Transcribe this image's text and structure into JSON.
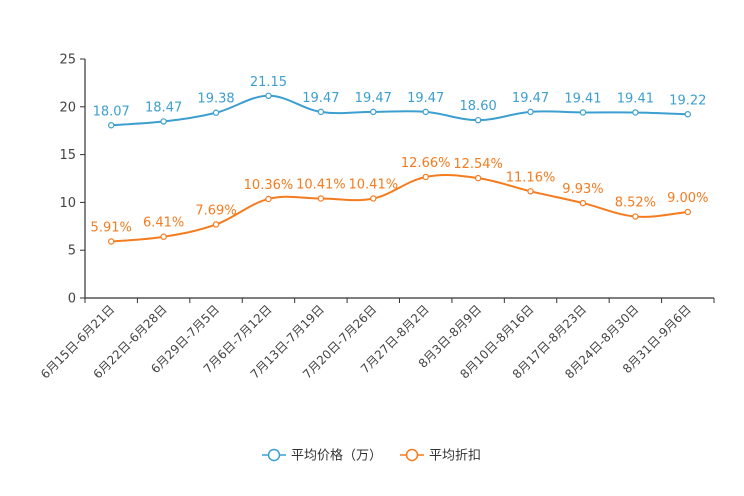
{
  "chart_data": {
    "type": "line",
    "title": "",
    "xlabel": "",
    "ylabel": "",
    "ylim": [
      0,
      25
    ],
    "yticks": [
      "0",
      "5",
      "10",
      "15",
      "20",
      "25"
    ],
    "categories": [
      "6月15日-6月21日",
      "6月22日-6月28日",
      "6月29日-7月5日",
      "7月6日-7月12日",
      "7月13日-7月19日",
      "7月20日-7月26日",
      "7月27日-8月2日",
      "8月3日-8月9日",
      "8月10日-8月16日",
      "8月17日-8月23日",
      "8月24日-8月30日",
      "8月31日-9月6日"
    ],
    "series": [
      {
        "name": "平均价格（万）",
        "color": "#3c9fd0",
        "values": [
          18.07,
          18.47,
          19.38,
          21.15,
          19.47,
          19.47,
          19.47,
          18.6,
          19.47,
          19.41,
          19.41,
          19.22
        ],
        "labels": [
          "18.07",
          "18.47",
          "19.38",
          "21.15",
          "19.47",
          "19.47",
          "19.47",
          "18.60",
          "19.47",
          "19.41",
          "19.41",
          "19.22"
        ]
      },
      {
        "name": "平均折扣",
        "color": "#f57b1f",
        "values": [
          5.91,
          6.41,
          7.69,
          10.36,
          10.41,
          10.41,
          12.66,
          12.54,
          11.16,
          9.93,
          8.52,
          9.0
        ],
        "labels": [
          "5.91%",
          "6.41%",
          "7.69%",
          "10.36%",
          "10.41%",
          "10.41%",
          "12.66%",
          "12.54%",
          "11.16%",
          "9.93%",
          "8.52%",
          "9.00%"
        ]
      }
    ],
    "legend_position": "bottom-center",
    "grid": false
  }
}
